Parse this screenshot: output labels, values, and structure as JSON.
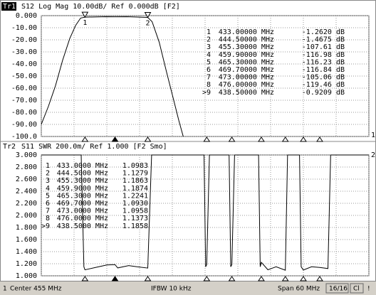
{
  "chart_data": [
    {
      "type": "line",
      "trace": "Tr1",
      "title": "S12 Log Mag 10.00dB/ Ref 0.000dB [F2]",
      "channel": "1",
      "x": [
        425,
        426.3,
        427.6,
        428.9,
        430.2,
        431.3,
        432.2,
        433,
        436.8,
        438.5,
        440.7,
        444.5,
        445.3,
        446.6,
        447.9,
        449.2,
        450.2,
        451
      ],
      "series": [
        {
          "color": "#000000",
          "values": [
            -90,
            -75,
            -58,
            -37,
            -19,
            -8,
            -2,
            -1.262,
            -0.9,
            -0.9209,
            -0.9,
            -1.4675,
            -5,
            -22,
            -46,
            -69,
            -87,
            -100
          ]
        }
      ],
      "xlim": [
        425,
        485
      ],
      "xticks": [
        425,
        431,
        437,
        443,
        449,
        455,
        461,
        467,
        473,
        479,
        485
      ],
      "ylim": [
        -100,
        0
      ],
      "yticks": [
        {
          "value": 0,
          "label": "0.000"
        },
        {
          "value": -10,
          "label": "-10.00"
        },
        {
          "value": -20,
          "label": "-20.00"
        },
        {
          "value": -30,
          "label": "-30.00"
        },
        {
          "value": -40,
          "label": "-40.00"
        },
        {
          "value": -50,
          "label": "-50.00"
        },
        {
          "value": -60,
          "label": "-60.00"
        },
        {
          "value": -70,
          "label": "-70.00"
        },
        {
          "value": -80,
          "label": "-80.00"
        },
        {
          "value": -90,
          "label": "-90.00"
        },
        {
          "value": -100,
          "label": "-100.0"
        }
      ],
      "grid": true,
      "markers": [
        {
          "id": "1",
          "freq": {
            "value": 433,
            "label": "433.00000 MHz"
          },
          "value": {
            "value": -1.262,
            "label": "-1.2620 dB"
          }
        },
        {
          "id": "2",
          "freq": {
            "value": 444.5,
            "label": "444.50000 MHz"
          },
          "value": {
            "value": -1.4675,
            "label": "-1.4675 dB"
          }
        },
        {
          "id": "3",
          "freq": {
            "value": 455.3,
            "label": "455.30000 MHz"
          },
          "value": {
            "value": -107.61,
            "label": "-107.61 dB"
          }
        },
        {
          "id": "4",
          "freq": {
            "value": 459.9,
            "label": "459.90000 MHz"
          },
          "value": {
            "value": -116.98,
            "label": "-116.98 dB"
          }
        },
        {
          "id": "5",
          "freq": {
            "value": 465.3,
            "label": "465.30000 MHz"
          },
          "value": {
            "value": -116.23,
            "label": "-116.23 dB"
          }
        },
        {
          "id": "6",
          "freq": {
            "value": 469.7,
            "label": "469.70000 MHz"
          },
          "value": {
            "value": -116.84,
            "label": "-116.84 dB"
          }
        },
        {
          "id": "7",
          "freq": {
            "value": 473,
            "label": "473.00000 MHz"
          },
          "value": {
            "value": -105.06,
            "label": "-105.06 dB"
          }
        },
        {
          "id": "8",
          "freq": {
            "value": 476,
            "label": "476.00000 MHz"
          },
          "value": {
            "value": -119.46,
            "label": "-119.46 dB"
          }
        },
        {
          "id": ">9",
          "freq": {
            "value": 438.5,
            "label": "438.50000 MHz"
          },
          "value": {
            "value": -0.9209,
            "label": "-0.9209 dB"
          }
        }
      ]
    },
    {
      "type": "line",
      "trace": "Tr2",
      "title": "S11 SWR 200.0m/ Ref 1.000 [F2 Smo]",
      "channel": "2",
      "x": [
        425,
        432.3,
        432.8,
        433,
        435,
        437,
        438.5,
        439,
        441,
        442.5,
        444.5,
        445.2,
        454.8,
        455.1,
        455.3,
        455.8,
        459.4,
        459.7,
        459.9,
        460.4,
        464.8,
        465.1,
        465.3,
        466.5,
        468,
        469.7,
        470.1,
        472.3,
        472.6,
        473,
        474.5,
        476,
        477.5,
        478,
        485
      ],
      "series": [
        {
          "color": "#000000",
          "values": [
            3,
            3,
            1.15,
            1.0983,
            1.14,
            1.18,
            1.1858,
            1.13,
            1.17,
            1.15,
            1.1279,
            3,
            3,
            1.15,
            1.1863,
            3,
            3,
            1.15,
            1.1874,
            3,
            3,
            1.15,
            1.2241,
            1.1,
            1.15,
            1.093,
            3,
            3,
            1.15,
            1.0958,
            1.15,
            1.1373,
            1.12,
            3,
            3
          ]
        }
      ],
      "xlim": [
        425,
        485
      ],
      "xticks": [
        425,
        431,
        437,
        443,
        449,
        455,
        461,
        467,
        473,
        479,
        485
      ],
      "ylim": [
        1,
        3
      ],
      "yticks": [
        {
          "value": 3,
          "label": "3.000"
        },
        {
          "value": 2.8,
          "label": "2.800"
        },
        {
          "value": 2.6,
          "label": "2.600"
        },
        {
          "value": 2.4,
          "label": "2.400"
        },
        {
          "value": 2.2,
          "label": "2.200"
        },
        {
          "value": 2,
          "label": "2.000"
        },
        {
          "value": 1.8,
          "label": "1.800"
        },
        {
          "value": 1.6,
          "label": "1.600"
        },
        {
          "value": 1.4,
          "label": "1.400"
        },
        {
          "value": 1.2,
          "label": "1.200"
        },
        {
          "value": 1,
          "label": "1.000"
        }
      ],
      "grid": true,
      "markers": [
        {
          "id": "1",
          "freq": {
            "value": 433,
            "label": "433.0000 MHz"
          },
          "value": {
            "value": 1.0983,
            "label": "1.0983"
          }
        },
        {
          "id": "2",
          "freq": {
            "value": 444.5,
            "label": "444.5000 MHz"
          },
          "value": {
            "value": 1.1279,
            "label": "1.1279"
          }
        },
        {
          "id": "3",
          "freq": {
            "value": 455.3,
            "label": "455.3000 MHz"
          },
          "value": {
            "value": 1.1863,
            "label": "1.1863"
          }
        },
        {
          "id": "4",
          "freq": {
            "value": 459.9,
            "label": "459.9000 MHz"
          },
          "value": {
            "value": 1.1874,
            "label": "1.1874"
          }
        },
        {
          "id": "5",
          "freq": {
            "value": 465.3,
            "label": "465.3000 MHz"
          },
          "value": {
            "value": 1.2241,
            "label": "1.2241"
          }
        },
        {
          "id": "6",
          "freq": {
            "value": 469.7,
            "label": "469.7000 MHz"
          },
          "value": {
            "value": 1.093,
            "label": "1.0930"
          }
        },
        {
          "id": "7",
          "freq": {
            "value": 473,
            "label": "473.0000 MHz"
          },
          "value": {
            "value": 1.0958,
            "label": "1.0958"
          }
        },
        {
          "id": "8",
          "freq": {
            "value": 476,
            "label": "476.0000 MHz"
          },
          "value": {
            "value": 1.1373,
            "label": "1.1373"
          }
        },
        {
          "id": ">9",
          "freq": {
            "value": 438.5,
            "label": "438.5000 MHz"
          },
          "value": {
            "value": 1.1858,
            "label": "1.1858"
          }
        }
      ]
    }
  ],
  "status_bar": [
    "1",
    "Center 455 MHz",
    "IFBW 10 kHz",
    "Span 60 MHz",
    "16/16",
    "Cl",
    "!"
  ]
}
